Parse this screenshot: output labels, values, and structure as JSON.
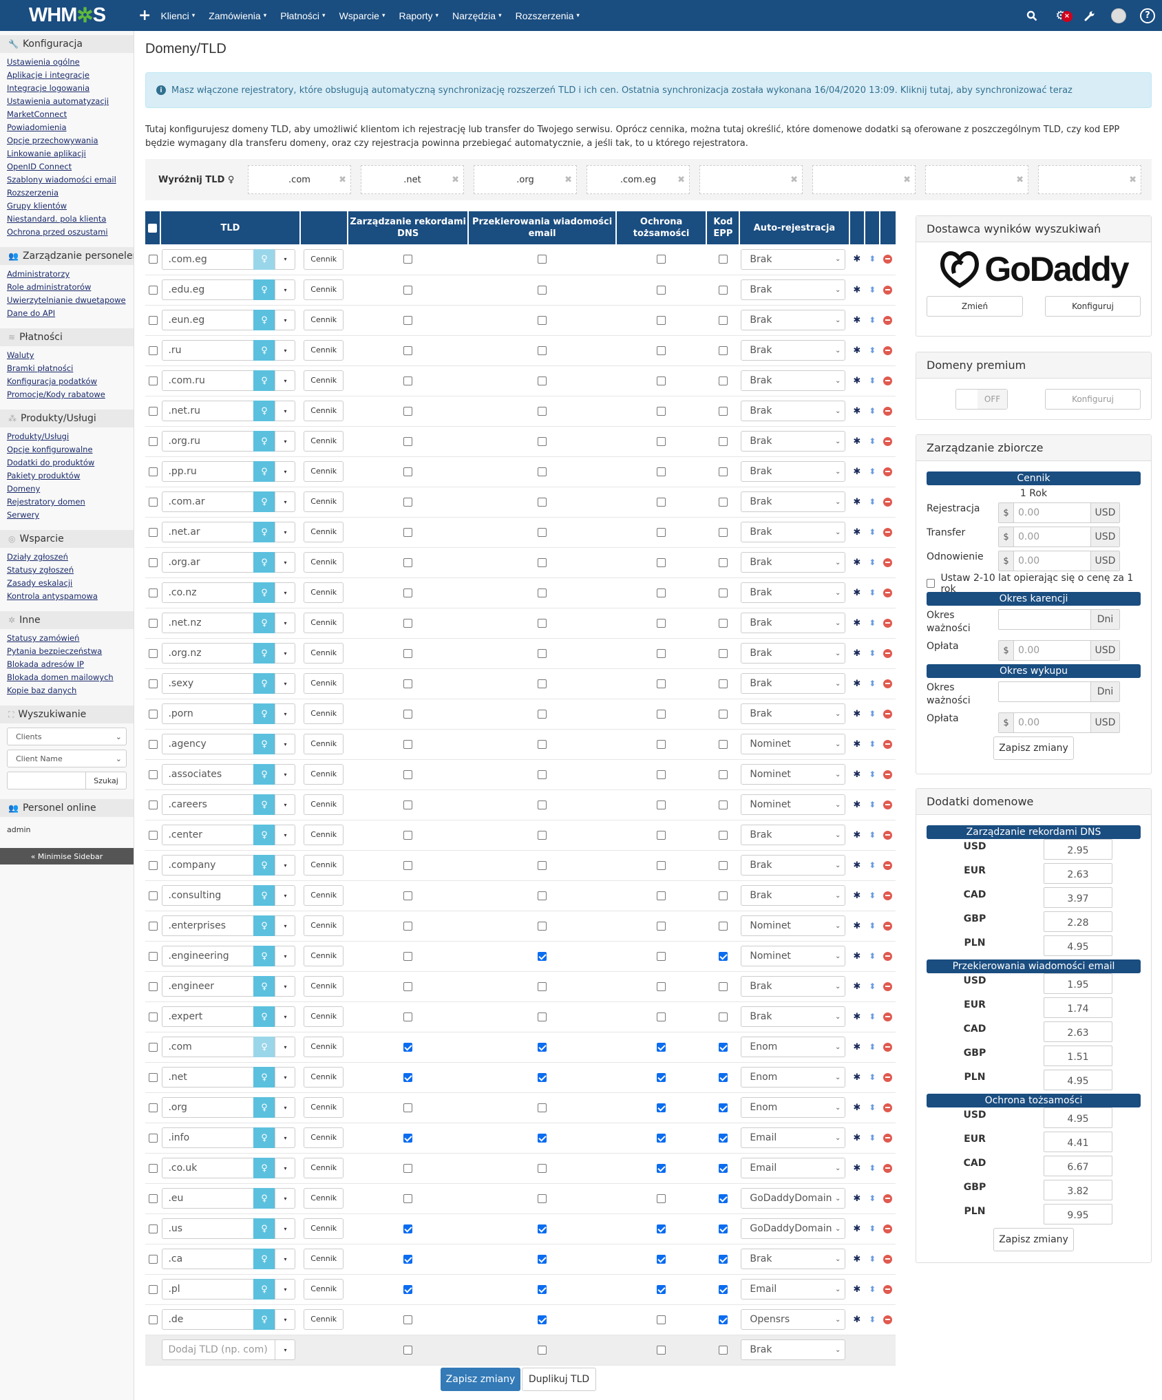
{
  "topbar": {
    "logo_left": "WHM",
    "logo_gear": "✲",
    "logo_right": "S",
    "plus": "+",
    "nav": [
      "Klienci",
      "Zamówienia",
      "Płatności",
      "Wsparcie",
      "Raporty",
      "Narzędzia",
      "Rozszerzenia"
    ],
    "caret": "▾",
    "icons": {
      "search": "🔍",
      "gears": "⚙",
      "badge": "×",
      "wrench": "🔧",
      "help": "?"
    }
  },
  "sidebar": {
    "sections": [
      {
        "title": "Konfiguracja",
        "icon": "🔧",
        "links": [
          "Ustawienia ogólne",
          "Aplikacje i integracje",
          "Integracje logowania",
          "Ustawienia automatyzacji",
          "MarketConnect",
          "Powiadomienia",
          "Opcje przechowywania",
          "Linkowanie aplikacji",
          "OpenID Connect",
          "Szablony wiadomości email",
          "Rozszerzenia",
          "Grupy klientów",
          "Niestandard. pola klienta",
          "Ochrona przed oszustami"
        ]
      },
      {
        "title": "Zarządzanie personelem",
        "icon": "👥",
        "links": [
          "Administratorzy",
          "Role administratorów",
          "Uwierzytelnianie dwuetapowe",
          "Dane do API"
        ]
      },
      {
        "title": "Płatności",
        "icon": "≋",
        "links": [
          "Waluty",
          "Bramki płatności",
          "Konfiguracja podatków",
          "Promocje/Kody rabatowe"
        ]
      },
      {
        "title": "Produkty/Usługi",
        "icon": "⁂",
        "links": [
          "Produkty/Usługi",
          "Opcje konfigurowalne",
          "Dodatki do produktów",
          "Pakiety produktów",
          "Domeny",
          "Rejestratory domen",
          "Serwery"
        ]
      },
      {
        "title": "Wsparcie",
        "icon": "◎",
        "links": [
          "Działy zgłoszeń",
          "Statusy zgłoszeń",
          "Zasady eskalacji",
          "Kontrola antyspamowa"
        ]
      },
      {
        "title": "Inne",
        "icon": "✲",
        "links": [
          "Statusy zamówień",
          "Pytania bezpieczeństwa",
          "Blokada adresów IP",
          "Blokada domen mailowych",
          "Kopie baz danych"
        ]
      }
    ],
    "search": {
      "title": "Wyszukiwanie",
      "icon": "⛶",
      "type_select": "Clients",
      "field_select": "Client Name",
      "button": "Szukaj",
      "chev": "⌄"
    },
    "online": {
      "title": "Personel online",
      "icon": "👥",
      "user": "admin"
    },
    "minimise": "« Minimise Sidebar"
  },
  "main": {
    "title": "Domeny/TLD",
    "alert": {
      "icon": "i",
      "text": "Masz włączone rejestratory, które obsługują automatyczną synchronizację rozszerzeń TLD i ich cen. Ostatnia synchronizacja została wykonana 16/04/2020 13:09.",
      "link": "Kliknij tutaj, aby synchronizować teraz"
    },
    "description": "Tutaj konfigurujesz domeny TLD, aby umożliwić klientom ich rejestrację lub transfer do Twojego serwisu. Oprócz cennika, można tutaj określić, które domenowe dodatki są oferowane z poszczególnym TLD, czy kod EPP będzie wymagany dla transferu domeny, oraz czy rejestracja powinna przebiegać automatycznie, a jeśli tak, to u którego rejestratora.",
    "featured": {
      "label": "Wyróżnij TLD",
      "bulb": "♀",
      "slots": [
        ".com",
        ".net",
        ".org",
        ".com.eg",
        "",
        "",
        "",
        ""
      ],
      "remove": "✖"
    }
  },
  "table": {
    "headers": {
      "tld": "TLD",
      "dns": "Zarządzanie rekordami DNS",
      "email": "Przekierowania wiadomości email",
      "idp": "Ochrona tożsamości",
      "epp": "Kod EPP",
      "auto": "Auto-rejestracja"
    },
    "pricing_label": "Cennik",
    "rows": [
      {
        "tld": ".com.eg",
        "dns": false,
        "email": false,
        "idp": false,
        "epp": false,
        "auto": "Brak",
        "featured": true
      },
      {
        "tld": ".edu.eg",
        "dns": false,
        "email": false,
        "idp": false,
        "epp": false,
        "auto": "Brak"
      },
      {
        "tld": ".eun.eg",
        "dns": false,
        "email": false,
        "idp": false,
        "epp": false,
        "auto": "Brak"
      },
      {
        "tld": ".ru",
        "dns": false,
        "email": false,
        "idp": false,
        "epp": false,
        "auto": "Brak"
      },
      {
        "tld": ".com.ru",
        "dns": false,
        "email": false,
        "idp": false,
        "epp": false,
        "auto": "Brak"
      },
      {
        "tld": ".net.ru",
        "dns": false,
        "email": false,
        "idp": false,
        "epp": false,
        "auto": "Brak"
      },
      {
        "tld": ".org.ru",
        "dns": false,
        "email": false,
        "idp": false,
        "epp": false,
        "auto": "Brak"
      },
      {
        "tld": ".pp.ru",
        "dns": false,
        "email": false,
        "idp": false,
        "epp": false,
        "auto": "Brak"
      },
      {
        "tld": ".com.ar",
        "dns": false,
        "email": false,
        "idp": false,
        "epp": false,
        "auto": "Brak"
      },
      {
        "tld": ".net.ar",
        "dns": false,
        "email": false,
        "idp": false,
        "epp": false,
        "auto": "Brak"
      },
      {
        "tld": ".org.ar",
        "dns": false,
        "email": false,
        "idp": false,
        "epp": false,
        "auto": "Brak"
      },
      {
        "tld": ".co.nz",
        "dns": false,
        "email": false,
        "idp": false,
        "epp": false,
        "auto": "Brak"
      },
      {
        "tld": ".net.nz",
        "dns": false,
        "email": false,
        "idp": false,
        "epp": false,
        "auto": "Brak"
      },
      {
        "tld": ".org.nz",
        "dns": false,
        "email": false,
        "idp": false,
        "epp": false,
        "auto": "Brak"
      },
      {
        "tld": ".sexy",
        "dns": false,
        "email": false,
        "idp": false,
        "epp": false,
        "auto": "Brak"
      },
      {
        "tld": ".porn",
        "dns": false,
        "email": false,
        "idp": false,
        "epp": false,
        "auto": "Brak"
      },
      {
        "tld": ".agency",
        "dns": false,
        "email": false,
        "idp": false,
        "epp": false,
        "auto": "Nominet"
      },
      {
        "tld": ".associates",
        "dns": false,
        "email": false,
        "idp": false,
        "epp": false,
        "auto": "Nominet"
      },
      {
        "tld": ".careers",
        "dns": false,
        "email": false,
        "idp": false,
        "epp": false,
        "auto": "Nominet"
      },
      {
        "tld": ".center",
        "dns": false,
        "email": false,
        "idp": false,
        "epp": false,
        "auto": "Brak"
      },
      {
        "tld": ".company",
        "dns": false,
        "email": false,
        "idp": false,
        "epp": false,
        "auto": "Brak"
      },
      {
        "tld": ".consulting",
        "dns": false,
        "email": false,
        "idp": false,
        "epp": false,
        "auto": "Brak"
      },
      {
        "tld": ".enterprises",
        "dns": false,
        "email": false,
        "idp": false,
        "epp": false,
        "auto": "Nominet"
      },
      {
        "tld": ".engineering",
        "dns": false,
        "email": true,
        "idp": false,
        "epp": true,
        "auto": "Nominet"
      },
      {
        "tld": ".engineer",
        "dns": false,
        "email": false,
        "idp": false,
        "epp": false,
        "auto": "Brak"
      },
      {
        "tld": ".expert",
        "dns": false,
        "email": false,
        "idp": false,
        "epp": false,
        "auto": "Brak"
      },
      {
        "tld": ".com",
        "dns": true,
        "email": true,
        "idp": true,
        "epp": true,
        "auto": "Enom",
        "featured": true
      },
      {
        "tld": ".net",
        "dns": true,
        "email": true,
        "idp": true,
        "epp": true,
        "auto": "Enom"
      },
      {
        "tld": ".org",
        "dns": false,
        "email": false,
        "idp": true,
        "epp": true,
        "auto": "Enom"
      },
      {
        "tld": ".info",
        "dns": true,
        "email": true,
        "idp": true,
        "epp": true,
        "auto": "Email"
      },
      {
        "tld": ".co.uk",
        "dns": false,
        "email": false,
        "idp": true,
        "epp": true,
        "auto": "Email"
      },
      {
        "tld": ".eu",
        "dns": false,
        "email": false,
        "idp": false,
        "epp": true,
        "auto": "GoDaddyDomain"
      },
      {
        "tld": ".us",
        "dns": true,
        "email": true,
        "idp": true,
        "epp": true,
        "auto": "GoDaddyDomain"
      },
      {
        "tld": ".ca",
        "dns": true,
        "email": true,
        "idp": true,
        "epp": true,
        "auto": "Brak"
      },
      {
        "tld": ".pl",
        "dns": true,
        "email": true,
        "idp": true,
        "epp": true,
        "auto": "Email"
      },
      {
        "tld": ".de",
        "dns": false,
        "email": true,
        "idp": false,
        "epp": true,
        "auto": "Opensrs"
      }
    ],
    "add_row": {
      "placeholder": "Dodaj TLD (np. com)",
      "auto": "Brak"
    },
    "icons": {
      "bulb": "♀",
      "caret": "▾",
      "chev": "⌄",
      "gear": "✱",
      "sort": "⬍"
    }
  },
  "buttons": {
    "save": "Zapisz zmiany",
    "duplicate": "Duplikuj TLD"
  },
  "panels": {
    "provider": {
      "title": "Dostawca wyników wyszukiwań",
      "logo": "GoDaddy",
      "change": "Zmień",
      "configure": "Konfiguruj"
    },
    "premium": {
      "title": "Domeny premium",
      "toggle": "OFF",
      "configure": "Konfiguruj"
    },
    "bulk": {
      "title": "Zarządzanie zbiorcze",
      "pricing_bar": "Cennik",
      "period": "1 Rok",
      "rows": [
        {
          "label": "Rejestracja",
          "prefix": "$",
          "placeholder": "0.00",
          "suffix": "USD"
        },
        {
          "label": "Transfer",
          "prefix": "$",
          "placeholder": "0.00",
          "suffix": "USD"
        },
        {
          "label": "Odnowienie",
          "prefix": "$",
          "placeholder": "0.00",
          "suffix": "USD"
        }
      ],
      "checkbox_label": "Ustaw 2-10 lat opierając się o cenę za 1 rok",
      "grace_bar": "Okres karencji",
      "grace_period_label": "Okres ważności",
      "grace_fee_label": "Opłata",
      "redemption_bar": "Okres wykupu",
      "redemption_period_label": "Okres ważności",
      "redemption_fee_label": "Opłata",
      "days": "Dni",
      "prefix": "$",
      "placeholder": "0.00",
      "suffix": "USD",
      "save": "Zapisz zmiany"
    },
    "addons": {
      "title": "Dodatki domenowe",
      "groups": [
        {
          "name": "Zarządzanie rekordami DNS",
          "prices": [
            {
              "cur": "USD",
              "val": "2.95"
            },
            {
              "cur": "EUR",
              "val": "2.63"
            },
            {
              "cur": "CAD",
              "val": "3.97"
            },
            {
              "cur": "GBP",
              "val": "2.28"
            },
            {
              "cur": "PLN",
              "val": "4.95"
            }
          ]
        },
        {
          "name": "Przekierowania wiadomości email",
          "prices": [
            {
              "cur": "USD",
              "val": "1.95"
            },
            {
              "cur": "EUR",
              "val": "1.74"
            },
            {
              "cur": "CAD",
              "val": "2.63"
            },
            {
              "cur": "GBP",
              "val": "1.51"
            },
            {
              "cur": "PLN",
              "val": "4.95"
            }
          ]
        },
        {
          "name": "Ochrona tożsamości",
          "prices": [
            {
              "cur": "USD",
              "val": "4.95"
            },
            {
              "cur": "EUR",
              "val": "4.41"
            },
            {
              "cur": "CAD",
              "val": "6.67"
            },
            {
              "cur": "GBP",
              "val": "3.82"
            },
            {
              "cur": "PLN",
              "val": "9.95"
            }
          ]
        }
      ],
      "save": "Zapisz zmiany"
    }
  },
  "colors": {
    "brand": "#1a4d80",
    "info_btn": "#5bc0de",
    "primary": "#337ab7",
    "danger": "#e05a4f",
    "checked": "#0b6cf0"
  }
}
